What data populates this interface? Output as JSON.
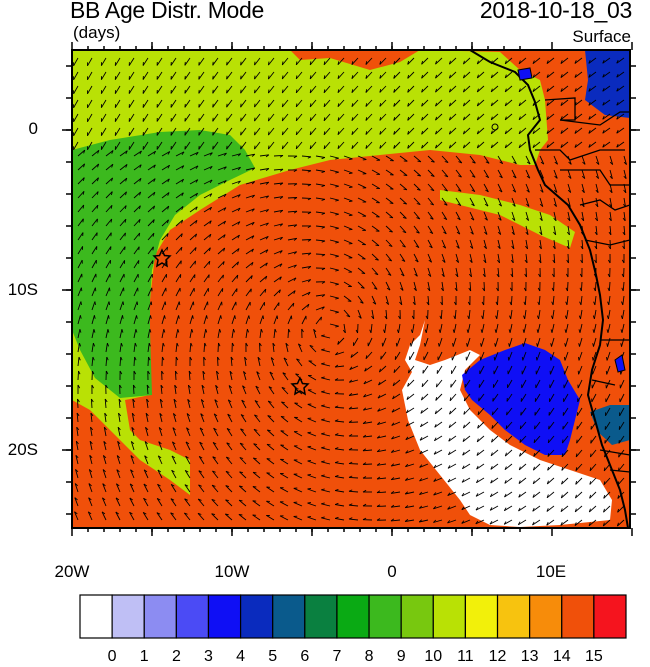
{
  "header": {
    "title": "BB Age Distr. Mode",
    "units": "(days)",
    "datetime": "2018-10-18_03",
    "level": "Surface"
  },
  "axes": {
    "lat_labels": [
      "0",
      "10S",
      "20S"
    ],
    "lon_labels": [
      "20W",
      "10W",
      "0",
      "10E"
    ]
  },
  "colorbar": {
    "ticks": [
      "0",
      "1",
      "2",
      "3",
      "4",
      "5",
      "6",
      "7",
      "8",
      "9",
      "10",
      "11",
      "12",
      "13",
      "14",
      "15"
    ],
    "colors": [
      "#ffffff",
      "#bfbff5",
      "#8c8cf2",
      "#4b4bf5",
      "#0f0ff5",
      "#0a2bbe",
      "#0a5a8c",
      "#0a8040",
      "#0aaa14",
      "#3cb91e",
      "#78c80f",
      "#b9e105",
      "#f2f00a",
      "#f7c30f",
      "#f78c0a",
      "#f0500a",
      "#f5141e"
    ]
  },
  "map_colors": {
    "orange": "#f0500a",
    "light_green": "#b9e105",
    "mid_green": "#3cb91e",
    "blue": "#0f0ff5",
    "dark_blue": "#0a2bbe",
    "teal": "#0a5a8c",
    "white": "#ffffff"
  }
}
